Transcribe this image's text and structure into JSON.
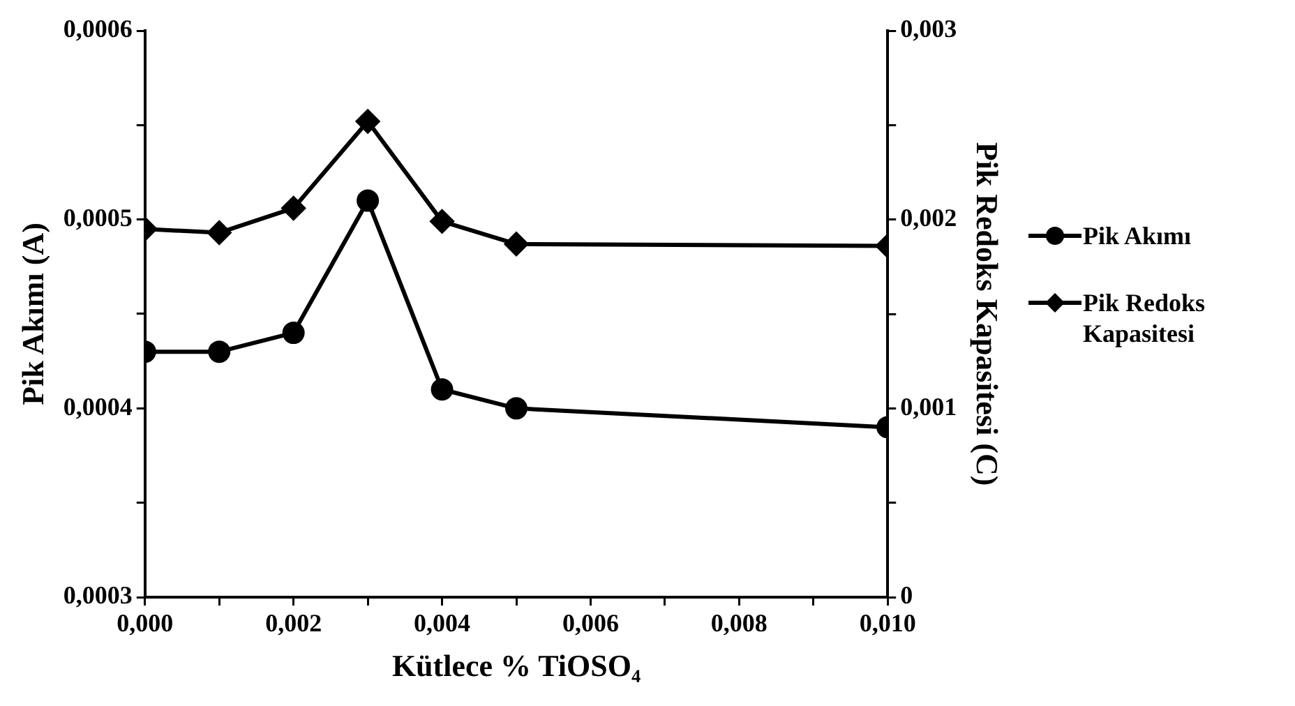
{
  "chart_data": {
    "type": "line",
    "xlabel": "Kütlece % TiOSO₄",
    "ylabel": "Pik Akımı (A)",
    "y2label": "Pik Redoks Kapasitesi (C)",
    "x": [
      0,
      0.001,
      0.002,
      0.003,
      0.004,
      0.005,
      0.01
    ],
    "series": [
      {
        "name": "Pik Akımı",
        "color": "#000000",
        "marker": "circle",
        "values": [
          0.00043,
          0.00043,
          0.00044,
          0.00051,
          0.00041,
          0.0004,
          0.00039
        ]
      },
      {
        "name": "Pik Redoks Kapasitesi",
        "color": "#000000",
        "marker": "diamond",
        "axis": "y2",
        "values": [
          0.00195,
          0.00193,
          0.00206,
          0.00252,
          0.00199,
          0.00187,
          0.00186
        ]
      }
    ],
    "xlim": [
      0,
      0.01
    ],
    "xticks": [
      {
        "value": 0,
        "label": "0,000"
      },
      {
        "value": 0.001,
        "label": null
      },
      {
        "value": 0.002,
        "label": "0,002"
      },
      {
        "value": 0.003,
        "label": null
      },
      {
        "value": 0.004,
        "label": "0,004"
      },
      {
        "value": 0.005,
        "label": null
      },
      {
        "value": 0.006,
        "label": "0,006"
      },
      {
        "value": 0.007,
        "label": null
      },
      {
        "value": 0.008,
        "label": "0,008"
      },
      {
        "value": 0.009,
        "label": null
      },
      {
        "value": 0.01,
        "label": "0,010"
      }
    ],
    "ylim": [
      0.0003,
      0.0006
    ],
    "yticks": [
      {
        "value": 0.0003,
        "label": "0,0003"
      },
      {
        "value": 0.00035,
        "label": null
      },
      {
        "value": 0.0004,
        "label": "0,0004"
      },
      {
        "value": 0.00045,
        "label": null
      },
      {
        "value": 0.0005,
        "label": "0,0005"
      },
      {
        "value": 0.00055,
        "label": null
      },
      {
        "value": 0.0006,
        "label": "0,0006"
      }
    ],
    "y2lim": [
      0,
      0.003
    ],
    "y2ticks": [
      0,
      {
        "value": 0.0005,
        "label": null
      },
      {
        "value": 0.001,
        "label": "0,001"
      },
      {
        "value": 0.0015,
        "label": null
      },
      {
        "value": 0.002,
        "label": "0,002"
      },
      {
        "value": 0.0025,
        "label": null
      },
      {
        "value": 0.003,
        "label": "0,003"
      }
    ],
    "grid": false,
    "legend": "right",
    "line_style": "solid"
  }
}
